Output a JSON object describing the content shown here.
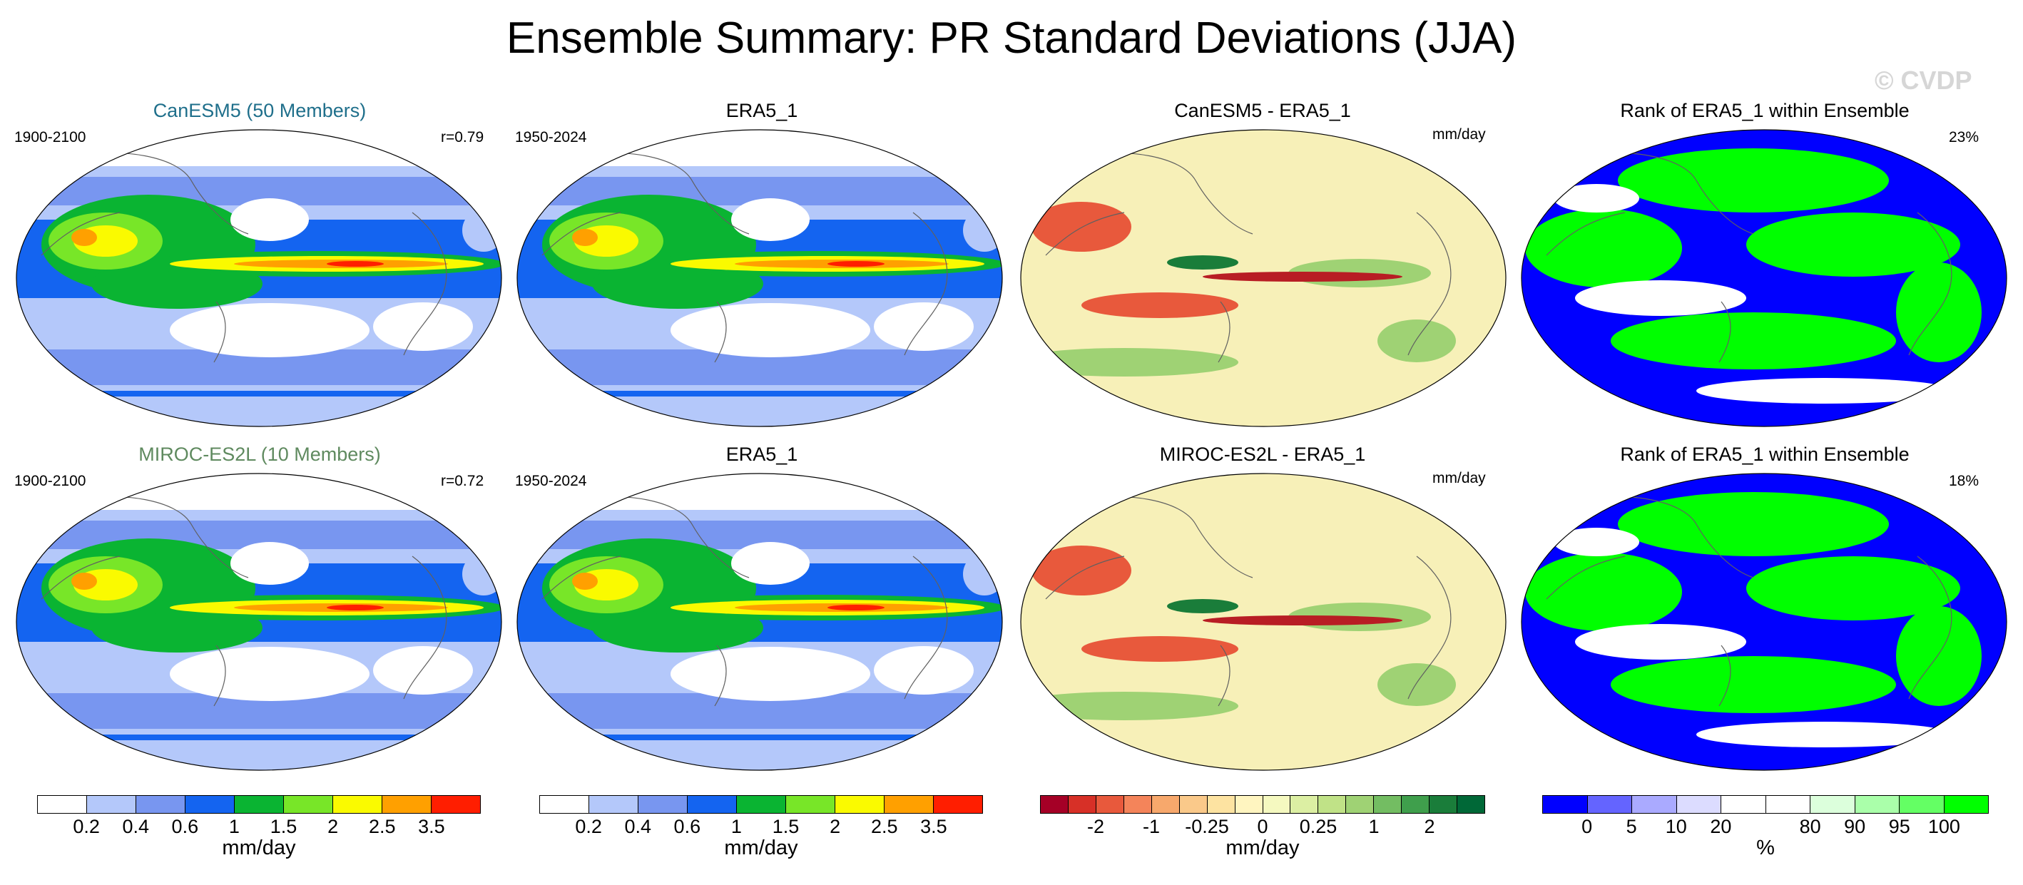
{
  "figure": {
    "title": "Ensemble Summary: PR Standard Deviations (JJA)",
    "watermark": "© CVDP"
  },
  "panels": [
    {
      "title": "CanESM5 (50 Members)",
      "title_color": "#1f6f8b",
      "left": "1900-2100",
      "right": "r=0.79",
      "kind": "std"
    },
    {
      "title": "ERA5_1",
      "title_color": "#000000",
      "left": "1950-2024",
      "right": "",
      "kind": "std"
    },
    {
      "title": "CanESM5 - ERA5_1",
      "title_color": "#000000",
      "left": "",
      "right": "mm/day",
      "kind": "diff"
    },
    {
      "title": "Rank of ERA5_1 within Ensemble",
      "title_color": "#000000",
      "left": "",
      "right": "23%",
      "kind": "rank"
    },
    {
      "title": "MIROC-ES2L (10 Members)",
      "title_color": "#5f8a5f",
      "left": "1900-2100",
      "right": "r=0.72",
      "kind": "std"
    },
    {
      "title": "ERA5_1",
      "title_color": "#000000",
      "left": "1950-2024",
      "right": "",
      "kind": "std"
    },
    {
      "title": "MIROC-ES2L - ERA5_1",
      "title_color": "#000000",
      "left": "",
      "right": "mm/day",
      "kind": "diff"
    },
    {
      "title": "Rank of ERA5_1 within Ensemble",
      "title_color": "#000000",
      "left": "",
      "right": "18%",
      "kind": "rank"
    }
  ],
  "colorbars": [
    {
      "name": "std-1",
      "unit": "mm/day",
      "colors": [
        "#ffffff",
        "#b4c8fa",
        "#7896f0",
        "#1464f0",
        "#0ab432",
        "#78e628",
        "#fafa00",
        "#ffa000",
        "#ff1e00"
      ],
      "labels": [
        "0.2",
        "0.4",
        "0.6",
        "1",
        "1.5",
        "2",
        "2.5",
        "3.5"
      ]
    },
    {
      "name": "std-2",
      "unit": "mm/day",
      "colors": [
        "#ffffff",
        "#b4c8fa",
        "#7896f0",
        "#1464f0",
        "#0ab432",
        "#78e628",
        "#fafa00",
        "#ffa000",
        "#ff1e00"
      ],
      "labels": [
        "0.2",
        "0.4",
        "0.6",
        "1",
        "1.5",
        "2",
        "2.5",
        "3.5"
      ]
    },
    {
      "name": "diff",
      "unit": "mm/day",
      "colors": [
        "#a50026",
        "#d73027",
        "#e8593c",
        "#f4845a",
        "#f7a86c",
        "#fac98a",
        "#fde3a1",
        "#fff5c0",
        "#f5f9c0",
        "#dcefa3",
        "#c0e287",
        "#9fd274",
        "#73bd62",
        "#3f9f4c",
        "#1a7d3a",
        "#006837"
      ],
      "labels": [
        "-2",
        "-1",
        "-0.25",
        "0",
        "0.25",
        "1",
        "2"
      ]
    },
    {
      "name": "rank",
      "unit": "%",
      "colors": [
        "#0000ff",
        "#6464ff",
        "#aaaaff",
        "#dcdcff",
        "#ffffff",
        "#ffffff",
        "#dcffdc",
        "#aaffaa",
        "#64ff64",
        "#00ff00"
      ],
      "labels": [
        "0",
        "5",
        "10",
        "20",
        "80",
        "90",
        "95",
        "100"
      ]
    }
  ],
  "palette": {
    "std": [
      "#ffffff",
      "#b4c8fa",
      "#7896f0",
      "#1464f0",
      "#0ab432",
      "#78e628",
      "#fafa00",
      "#ffa000",
      "#ff1e00"
    ],
    "diff_neg": "#e8593c",
    "diff_neg_strong": "#b81d24",
    "diff_bg": "#f7f0b8",
    "diff_pos": "#9fd274",
    "diff_pos_strong": "#1a7d3a",
    "rank_low": "#0000ff",
    "rank_high": "#00ff00"
  }
}
